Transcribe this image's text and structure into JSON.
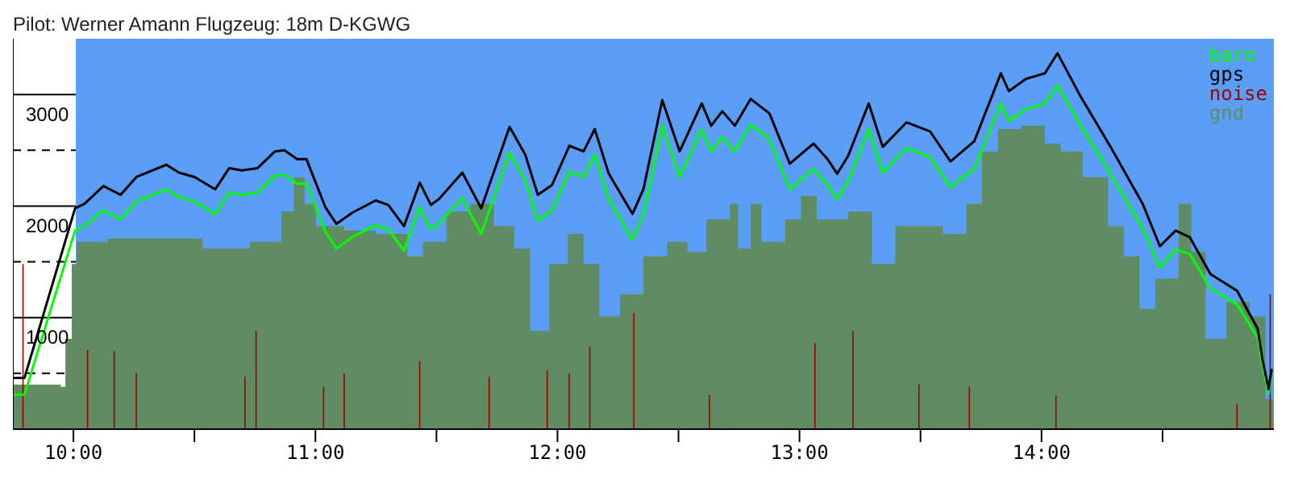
{
  "chart_data": {
    "type": "line",
    "title": "Pilot: Werner Amann Flugzeug: 18m D-KGWG",
    "xlim": [
      9.75,
      14.96
    ],
    "xticks": [
      {
        "value": 10,
        "label": "10:00"
      },
      {
        "value": 10.5,
        "label": null
      },
      {
        "value": 11,
        "label": "11:00"
      },
      {
        "value": 11.5,
        "label": null
      },
      {
        "value": 12,
        "label": "12:00"
      },
      {
        "value": 12.5,
        "label": null
      },
      {
        "value": 13,
        "label": "13:00"
      },
      {
        "value": 13.5,
        "label": null
      },
      {
        "value": 14,
        "label": "14:00"
      },
      {
        "value": 14.5,
        "label": null
      }
    ],
    "ylim": [
      0,
      3500
    ],
    "yticks": [
      {
        "value": 500,
        "label": null
      },
      1000,
      {
        "value": 1500,
        "label": null
      },
      2000,
      {
        "value": 2500,
        "label": null
      },
      3000
    ],
    "grid": "y",
    "legend": "top right",
    "bands": [
      {
        "axis": "x",
        "from": 10.01,
        "to": 14.96,
        "color": "#5a9ef8"
      }
    ],
    "series": [
      {
        "name": "baro",
        "color": "#00ff00",
        "x": [
          9.753,
          9.798,
          10.007,
          10.046,
          10.124,
          10.195,
          10.26,
          10.384,
          10.436,
          10.501,
          10.586,
          10.644,
          10.696,
          10.761,
          10.833,
          10.872,
          10.924,
          10.963,
          11.041,
          11.087,
          11.152,
          11.249,
          11.301,
          11.366,
          11.431,
          11.477,
          11.509,
          11.607,
          11.685,
          11.802,
          11.867,
          11.919,
          11.978,
          12.049,
          12.108,
          12.154,
          12.212,
          12.31,
          12.355,
          12.433,
          12.505,
          12.596,
          12.635,
          12.681,
          12.733,
          12.798,
          12.876,
          12.96,
          13.058,
          13.116,
          13.156,
          13.201,
          13.286,
          13.344,
          13.442,
          13.539,
          13.624,
          13.722,
          13.832,
          13.865,
          13.936,
          14.014,
          14.066,
          14.157,
          14.288,
          14.418,
          14.489,
          14.554,
          14.613,
          14.698,
          14.808,
          14.893,
          14.912,
          14.938,
          14.951
        ],
        "values": [
          310,
          310,
          1780,
          1820,
          1960,
          1880,
          2040,
          2150,
          2080,
          2040,
          1930,
          2120,
          2100,
          2120,
          2270,
          2280,
          2200,
          2200,
          1770,
          1620,
          1720,
          1830,
          1790,
          1600,
          1990,
          1790,
          1840,
          2070,
          1750,
          2480,
          2230,
          1870,
          1960,
          2310,
          2260,
          2460,
          2060,
          1700,
          1920,
          2720,
          2260,
          2690,
          2490,
          2620,
          2490,
          2730,
          2600,
          2150,
          2330,
          2190,
          2060,
          2220,
          2690,
          2300,
          2520,
          2440,
          2170,
          2330,
          2920,
          2760,
          2870,
          2920,
          3080,
          2740,
          2280,
          1800,
          1450,
          1610,
          1570,
          1260,
          1120,
          820,
          570,
          320,
          500
        ]
      },
      {
        "name": "gps",
        "color": "#000000",
        "x": [
          9.753,
          9.798,
          10.007,
          10.046,
          10.124,
          10.195,
          10.26,
          10.384,
          10.436,
          10.501,
          10.586,
          10.644,
          10.696,
          10.761,
          10.833,
          10.872,
          10.924,
          10.963,
          11.041,
          11.087,
          11.152,
          11.249,
          11.301,
          11.366,
          11.431,
          11.477,
          11.509,
          11.607,
          11.685,
          11.802,
          11.867,
          11.919,
          11.978,
          12.049,
          12.108,
          12.154,
          12.212,
          12.31,
          12.355,
          12.433,
          12.505,
          12.596,
          12.635,
          12.681,
          12.733,
          12.798,
          12.876,
          12.96,
          13.058,
          13.116,
          13.156,
          13.201,
          13.286,
          13.344,
          13.442,
          13.539,
          13.624,
          13.722,
          13.832,
          13.865,
          13.936,
          14.014,
          14.066,
          14.157,
          14.288,
          14.418,
          14.489,
          14.554,
          14.613,
          14.698,
          14.808,
          14.893,
          14.912,
          14.938,
          14.951
        ],
        "values": [
          460,
          460,
          1980,
          2020,
          2180,
          2100,
          2260,
          2370,
          2300,
          2260,
          2150,
          2340,
          2320,
          2340,
          2490,
          2500,
          2420,
          2420,
          1990,
          1840,
          1940,
          2050,
          2010,
          1820,
          2210,
          2010,
          2060,
          2300,
          1980,
          2710,
          2460,
          2100,
          2190,
          2540,
          2490,
          2690,
          2290,
          1930,
          2150,
          2950,
          2490,
          2920,
          2720,
          2850,
          2720,
          2960,
          2830,
          2380,
          2560,
          2420,
          2290,
          2450,
          2920,
          2530,
          2750,
          2670,
          2400,
          2580,
          3190,
          3030,
          3140,
          3190,
          3370,
          3000,
          2520,
          2020,
          1640,
          1780,
          1720,
          1390,
          1240,
          900,
          630,
          360,
          540
        ]
      },
      {
        "name": "noise",
        "type": "bar",
        "color": "#a00000",
        "x": [
          9.792,
          10.059,
          10.169,
          10.26,
          10.709,
          10.755,
          11.034,
          11.119,
          11.431,
          11.718,
          11.958,
          12.049,
          12.134,
          12.316,
          12.628,
          13.064,
          13.221,
          13.494,
          13.702,
          14.06,
          14.808,
          14.945
        ],
        "values": [
          1480,
          710,
          700,
          500,
          470,
          880,
          380,
          500,
          610,
          470,
          530,
          500,
          740,
          1040,
          310,
          770,
          880,
          400,
          380,
          300,
          230,
          1210
        ]
      },
      {
        "name": "gnd",
        "type": "area",
        "color": "#5f8c62",
        "x": [
          9.753,
          9.948,
          9.967,
          9.993,
          10.013,
          10.143,
          10.403,
          10.534,
          10.729,
          10.859,
          10.911,
          10.956,
          11.002,
          11.119,
          11.249,
          11.379,
          11.444,
          11.542,
          11.64,
          11.737,
          11.822,
          11.887,
          11.965,
          12.043,
          12.108,
          12.173,
          12.258,
          12.355,
          12.453,
          12.537,
          12.616,
          12.713,
          12.746,
          12.798,
          12.843,
          12.941,
          13.006,
          13.071,
          13.201,
          13.299,
          13.396,
          13.494,
          13.592,
          13.689,
          13.754,
          13.819,
          13.917,
          14.014,
          14.079,
          14.17,
          14.275,
          14.34,
          14.405,
          14.47,
          14.567,
          14.619,
          14.678,
          14.763,
          14.86,
          14.925,
          14.958
        ],
        "values": [
          400,
          380,
          810,
          1480,
          1680,
          1710,
          1710,
          1620,
          1680,
          1950,
          2260,
          2020,
          1820,
          1780,
          1750,
          1550,
          1680,
          1950,
          2020,
          1820,
          1620,
          880,
          1480,
          1750,
          1480,
          1010,
          1210,
          1550,
          1680,
          1590,
          1880,
          2020,
          1620,
          2020,
          1680,
          1880,
          2090,
          1880,
          1950,
          1480,
          1820,
          1820,
          1750,
          2020,
          2490,
          2690,
          2720,
          2560,
          2490,
          2260,
          1820,
          1550,
          1080,
          1350,
          2020,
          1590,
          810,
          1140,
          1010,
          270,
          140
        ]
      }
    ]
  }
}
